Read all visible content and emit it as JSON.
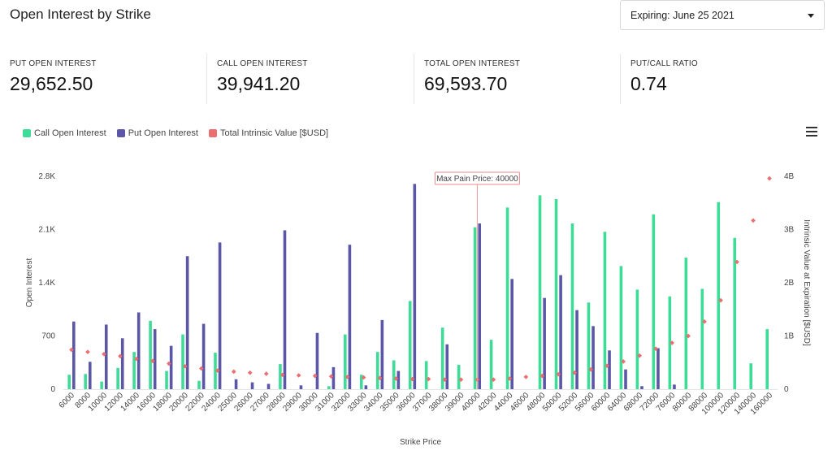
{
  "header": {
    "title": "Open Interest by Strike",
    "expiry_label": "Expiring: June 25 2021"
  },
  "stats": [
    {
      "label": "PUT OPEN INTEREST",
      "value": "29,652.50"
    },
    {
      "label": "CALL OPEN INTEREST",
      "value": "39,941.20"
    },
    {
      "label": "TOTAL OPEN INTEREST",
      "value": "69,593.70"
    },
    {
      "label": "PUT/CALL RATIO",
      "value": "0.74"
    }
  ],
  "legend": {
    "call": "Call Open Interest",
    "put": "Put Open Interest",
    "intrinsic": "Total Intrinsic Value [$USD]"
  },
  "colors": {
    "call": "#3ddc97",
    "put": "#5b57a6",
    "intrinsic": "#ec6f6f"
  },
  "chart_data": {
    "type": "bar",
    "xlabel": "Strike Price",
    "ylabel": "Open Interest",
    "y2label": "Intrinsic Value at Expiration [$USD]",
    "ylim": [
      0,
      2800
    ],
    "y2lim": [
      0,
      4000000000
    ],
    "yticks": [
      "0",
      "700",
      "1.4K",
      "2.1K",
      "2.8K"
    ],
    "y2ticks": [
      "0",
      "1B",
      "2B",
      "3B",
      "4B"
    ],
    "annotation": "Max Pain Price: 40000",
    "annotation_category": "40000",
    "categories": [
      "6000",
      "8000",
      "10000",
      "12000",
      "14000",
      "16000",
      "18000",
      "20000",
      "22000",
      "24000",
      "25000",
      "26000",
      "27000",
      "28000",
      "29000",
      "30000",
      "31000",
      "32000",
      "33000",
      "34000",
      "35000",
      "36000",
      "37000",
      "38000",
      "39000",
      "40000",
      "42000",
      "44000",
      "46000",
      "48000",
      "50000",
      "52000",
      "56000",
      "60000",
      "64000",
      "68000",
      "72000",
      "76000",
      "80000",
      "88000",
      "100000",
      "120000",
      "140000",
      "160000"
    ],
    "series": [
      {
        "name": "Call Open Interest",
        "kind": "bar",
        "values": [
          190,
          200,
          100,
          280,
          490,
          900,
          240,
          720,
          110,
          480,
          0,
          0,
          0,
          330,
          0,
          0,
          40,
          720,
          190,
          490,
          380,
          1160,
          370,
          810,
          320,
          2130,
          650,
          2390,
          0,
          2550,
          2500,
          2180,
          1140,
          2070,
          1620,
          1310,
          2300,
          1220,
          1730,
          1320,
          2460,
          1990,
          340,
          790
        ]
      },
      {
        "name": "Put Open Interest",
        "kind": "bar",
        "values": [
          890,
          360,
          850,
          670,
          1010,
          790,
          570,
          1750,
          860,
          1930,
          130,
          90,
          70,
          2090,
          50,
          740,
          290,
          1900,
          50,
          910,
          240,
          2700,
          0,
          590,
          0,
          2180,
          0,
          1450,
          0,
          1200,
          1500,
          1040,
          830,
          510,
          260,
          40,
          540,
          60,
          0,
          0,
          0,
          0,
          0,
          0
        ]
      },
      {
        "name": "Total Intrinsic Value [$USD]",
        "kind": "scatter",
        "axis": "y2",
        "values": [
          740000000,
          700000000,
          660000000,
          620000000,
          570000000,
          530000000,
          480000000,
          430000000,
          390000000,
          350000000,
          330000000,
          310000000,
          290000000,
          270000000,
          260000000,
          250000000,
          240000000,
          230000000,
          220000000,
          210000000,
          200000000,
          190000000,
          190000000,
          180000000,
          180000000,
          180000000,
          180000000,
          200000000,
          230000000,
          250000000,
          280000000,
          310000000,
          370000000,
          440000000,
          520000000,
          630000000,
          760000000,
          870000000,
          1000000000,
          1270000000,
          1670000000,
          2390000000,
          3170000000,
          3960000000
        ]
      }
    ]
  }
}
